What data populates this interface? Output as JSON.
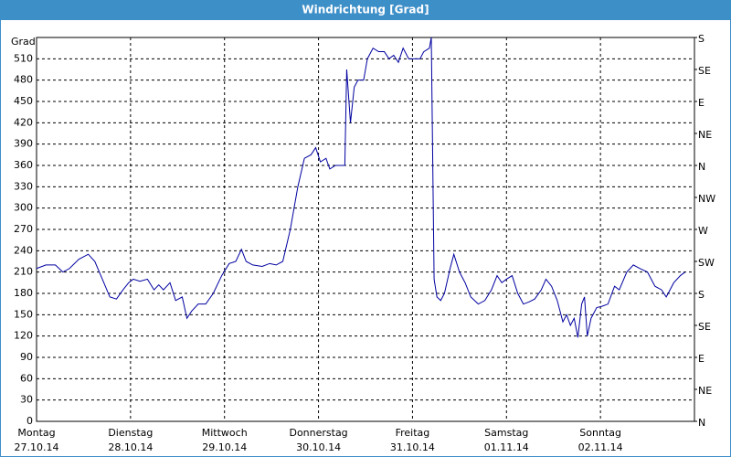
{
  "chart_data": {
    "type": "line",
    "title": "Windrichtung [Grad]",
    "ylabel": "Grad",
    "xlim": [
      0,
      7
    ],
    "xticks": [
      {
        "value": 0,
        "label": "Montag"
      },
      {
        "value": 1,
        "label": "Dienstag"
      },
      {
        "value": 2,
        "label": "Mittwoch"
      },
      {
        "value": 3,
        "label": "Donnerstag"
      },
      {
        "value": 4,
        "label": "Freitag"
      },
      {
        "value": 5,
        "label": "Samstag"
      },
      {
        "value": 6,
        "label": "Sonntag"
      }
    ],
    "x_tick_dates": [
      "27.10.14",
      "28.10.14",
      "29.10.14",
      "30.10.14",
      "31.10.14",
      "01.11.14",
      "02.11.14"
    ],
    "ylim": [
      0,
      540
    ],
    "yticks": [
      0,
      30,
      60,
      90,
      120,
      150,
      180,
      210,
      240,
      270,
      300,
      330,
      360,
      390,
      420,
      450,
      480,
      510
    ],
    "y2lim": [
      0,
      540
    ],
    "y2ticks": [
      {
        "value": 0,
        "label": "N"
      },
      {
        "value": 45,
        "label": "NE"
      },
      {
        "value": 90,
        "label": "E"
      },
      {
        "value": 135,
        "label": "SE"
      },
      {
        "value": 180,
        "label": "S"
      },
      {
        "value": 225,
        "label": "SW"
      },
      {
        "value": 270,
        "label": "W"
      },
      {
        "value": 315,
        "label": "NW"
      },
      {
        "value": 360,
        "label": "N"
      },
      {
        "value": 405,
        "label": "NE"
      },
      {
        "value": 450,
        "label": "E"
      },
      {
        "value": 495,
        "label": "SE"
      },
      {
        "value": 540,
        "label": "S"
      }
    ],
    "grid": true,
    "series": [
      {
        "color": "#0000a0",
        "x": [
          0,
          0.1,
          0.2,
          0.28,
          0.35,
          0.45,
          0.55,
          0.62,
          0.7,
          0.78,
          0.85,
          0.92,
          0.98,
          1.03,
          1.1,
          1.18,
          1.25,
          1.3,
          1.35,
          1.42,
          1.48,
          1.55,
          1.6,
          1.65,
          1.72,
          1.8,
          1.88,
          1.97,
          2.05,
          2.12,
          2.18,
          2.23,
          2.3,
          2.4,
          2.48,
          2.55,
          2.62,
          2.7,
          2.78,
          2.85,
          2.92,
          2.97,
          3.02,
          3.08,
          3.12,
          3.18,
          3.28,
          3.3,
          3.34,
          3.38,
          3.42,
          3.48,
          3.52,
          3.58,
          3.64,
          3.7,
          3.75,
          3.8,
          3.85,
          3.9,
          3.96,
          4.02,
          4.08,
          4.12,
          4.18,
          4.2,
          4.23,
          4.26,
          4.3,
          4.34,
          4.4,
          4.44,
          4.5,
          4.56,
          4.62,
          4.7,
          4.77,
          4.84,
          4.9,
          4.95,
          5.0,
          5.06,
          5.12,
          5.18,
          5.24,
          5.3,
          5.37,
          5.42,
          5.48,
          5.54,
          5.6,
          5.64,
          5.68,
          5.72,
          5.76,
          5.8,
          5.83,
          5.86,
          5.9,
          5.96,
          6.02,
          6.08,
          6.15,
          6.2,
          6.28,
          6.35,
          6.42,
          6.5,
          6.58,
          6.65,
          6.7,
          6.78,
          6.85,
          6.9
        ],
        "values": [
          215,
          220,
          220,
          210,
          215,
          228,
          235,
          225,
          200,
          175,
          172,
          185,
          195,
          200,
          197,
          200,
          185,
          192,
          185,
          195,
          170,
          175,
          145,
          155,
          165,
          165,
          180,
          205,
          222,
          225,
          242,
          225,
          220,
          218,
          222,
          220,
          225,
          270,
          330,
          370,
          375,
          385,
          365,
          370,
          355,
          360,
          360,
          495,
          420,
          470,
          480,
          480,
          510,
          525,
          520,
          520,
          510,
          515,
          505,
          525,
          510,
          510,
          510,
          520,
          525,
          540,
          200,
          175,
          170,
          180,
          215,
          235,
          210,
          195,
          175,
          165,
          170,
          185,
          205,
          195,
          200,
          205,
          180,
          165,
          168,
          172,
          185,
          200,
          190,
          170,
          140,
          150,
          135,
          145,
          118,
          165,
          175,
          120,
          145,
          160,
          162,
          165,
          190,
          185,
          210,
          220,
          215,
          210,
          190,
          185,
          175,
          195,
          205,
          210
        ]
      }
    ]
  }
}
